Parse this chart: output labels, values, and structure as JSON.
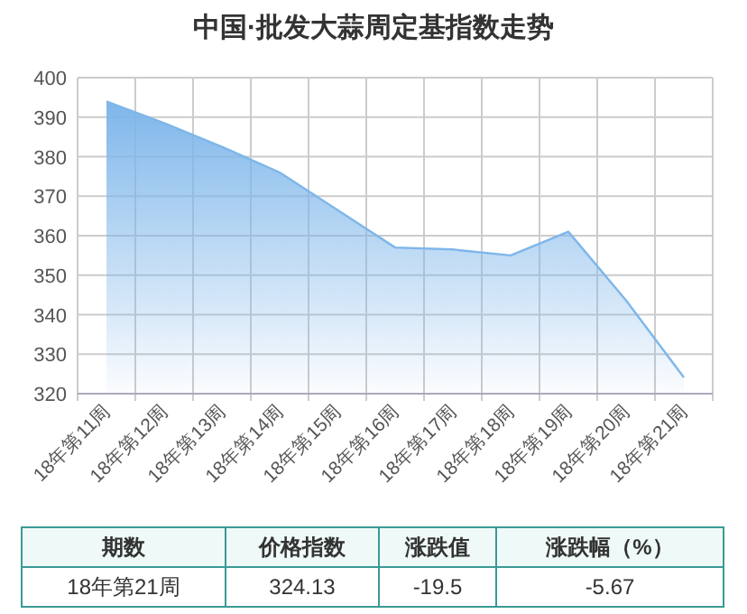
{
  "chart_data": {
    "type": "area",
    "title": "中国·批发大蒜周定基指数走势",
    "categories": [
      "18年第11周",
      "18年第12周",
      "18年第13周",
      "18年第14周",
      "18年第15周",
      "18年第16周",
      "18年第17周",
      "18年第18周",
      "18年第19周",
      "18年第20周",
      "18年第21周"
    ],
    "series": [
      {
        "color": "#7eb6ea",
        "values": [
          394,
          388.5,
          382.5,
          376,
          366.5,
          357,
          356.5,
          355,
          361,
          343.6,
          324.13
        ]
      }
    ],
    "ylim": [
      320,
      400
    ],
    "yticks": [
      320,
      330,
      340,
      350,
      360,
      370,
      380,
      390,
      400
    ],
    "grid": true,
    "annotations": [
      "期数",
      "价格指数",
      "涨跌值",
      "涨跌幅（%）",
      "18年第21周",
      "324.13",
      "-19.5",
      "-5.67"
    ]
  }
}
